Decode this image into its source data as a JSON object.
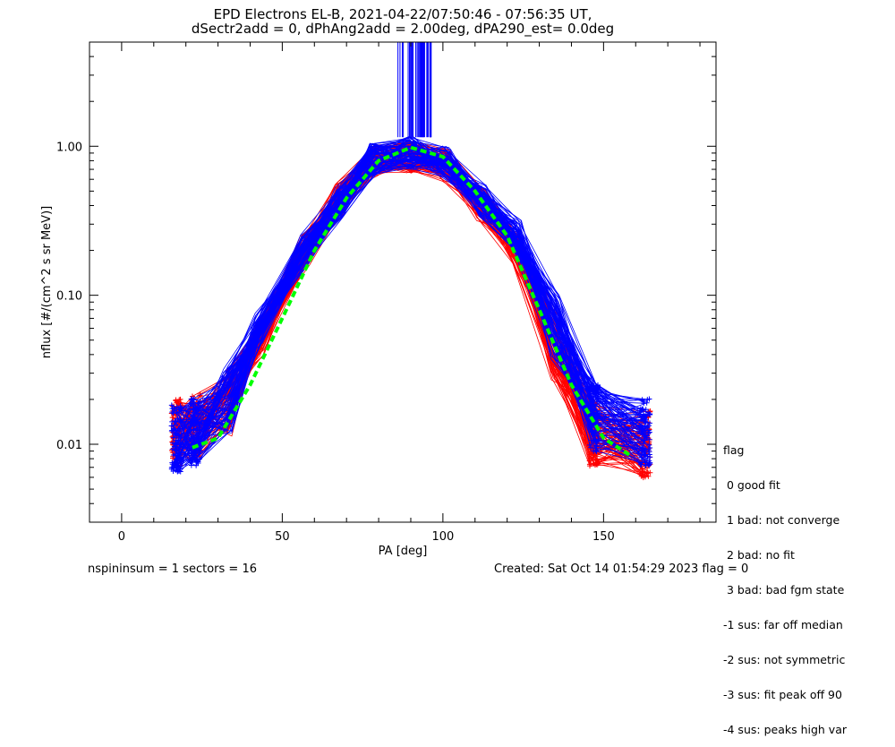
{
  "header": {
    "title_line1": "EPD Electrons EL-B, 2021-04-22/07:50:46 - 07:56:35 UT,",
    "title_line2": "dSectr2add = 0, dPhAng2add = 2.00deg, dPA290_est=   0.0deg"
  },
  "footer": {
    "left": "nspininsum =  1  sectors = 16",
    "right": "Created: Sat Oct 14 01:54:29 2023   flag = 0"
  },
  "legend": {
    "title": "flag",
    "items": [
      " 0 good fit",
      " 1 bad: not converge",
      " 2 bad: no fit",
      " 3 bad: bad fgm state",
      "-1 sus: far off median",
      "-2 sus: not symmetric",
      "-3 sus: fit peak off 90",
      "-4 sus: peaks high var"
    ]
  },
  "chart_data": {
    "type": "line",
    "xlabel": "PA [deg]",
    "ylabel": "nflux [#/(cm^2 s sr MeV)]",
    "xlim": [
      -10,
      185
    ],
    "ylim": [
      0.003,
      5
    ],
    "yscale": "log",
    "xticks": [
      0,
      50,
      100,
      150
    ],
    "yticks": [
      0.01,
      0.1,
      1.0
    ],
    "ytick_labels": [
      "0.01",
      "0.10",
      "1.00"
    ],
    "colors": {
      "red": "#ff0000",
      "blue": "#0000ff",
      "fit": "#00ff00",
      "axes": "#000000"
    },
    "series": [
      {
        "color": "red",
        "x": [
          17,
          23,
          33,
          43,
          57,
          68,
          78,
          90,
          101,
          112,
          123,
          135,
          147,
          163
        ],
        "y": [
          0.012,
          0.013,
          0.019,
          0.05,
          0.2,
          0.45,
          0.8,
          0.85,
          0.75,
          0.4,
          0.2,
          0.045,
          0.012,
          0.01
        ]
      },
      {
        "color": "blue",
        "x": [
          17,
          23,
          33,
          43,
          57,
          68,
          78,
          90,
          101,
          112,
          123,
          135,
          147,
          163
        ],
        "y": [
          0.011,
          0.012,
          0.02,
          0.06,
          0.2,
          0.42,
          0.82,
          0.9,
          0.78,
          0.43,
          0.25,
          0.06,
          0.015,
          0.012
        ]
      },
      {
        "color": "fit",
        "style": "dashed",
        "x": [
          22,
          30,
          40,
          50,
          60,
          70,
          80,
          90,
          100,
          110,
          120,
          130,
          140,
          150,
          158
        ],
        "y": [
          0.0095,
          0.011,
          0.025,
          0.07,
          0.2,
          0.45,
          0.8,
          0.98,
          0.85,
          0.5,
          0.25,
          0.08,
          0.025,
          0.011,
          0.0085
        ]
      }
    ]
  }
}
